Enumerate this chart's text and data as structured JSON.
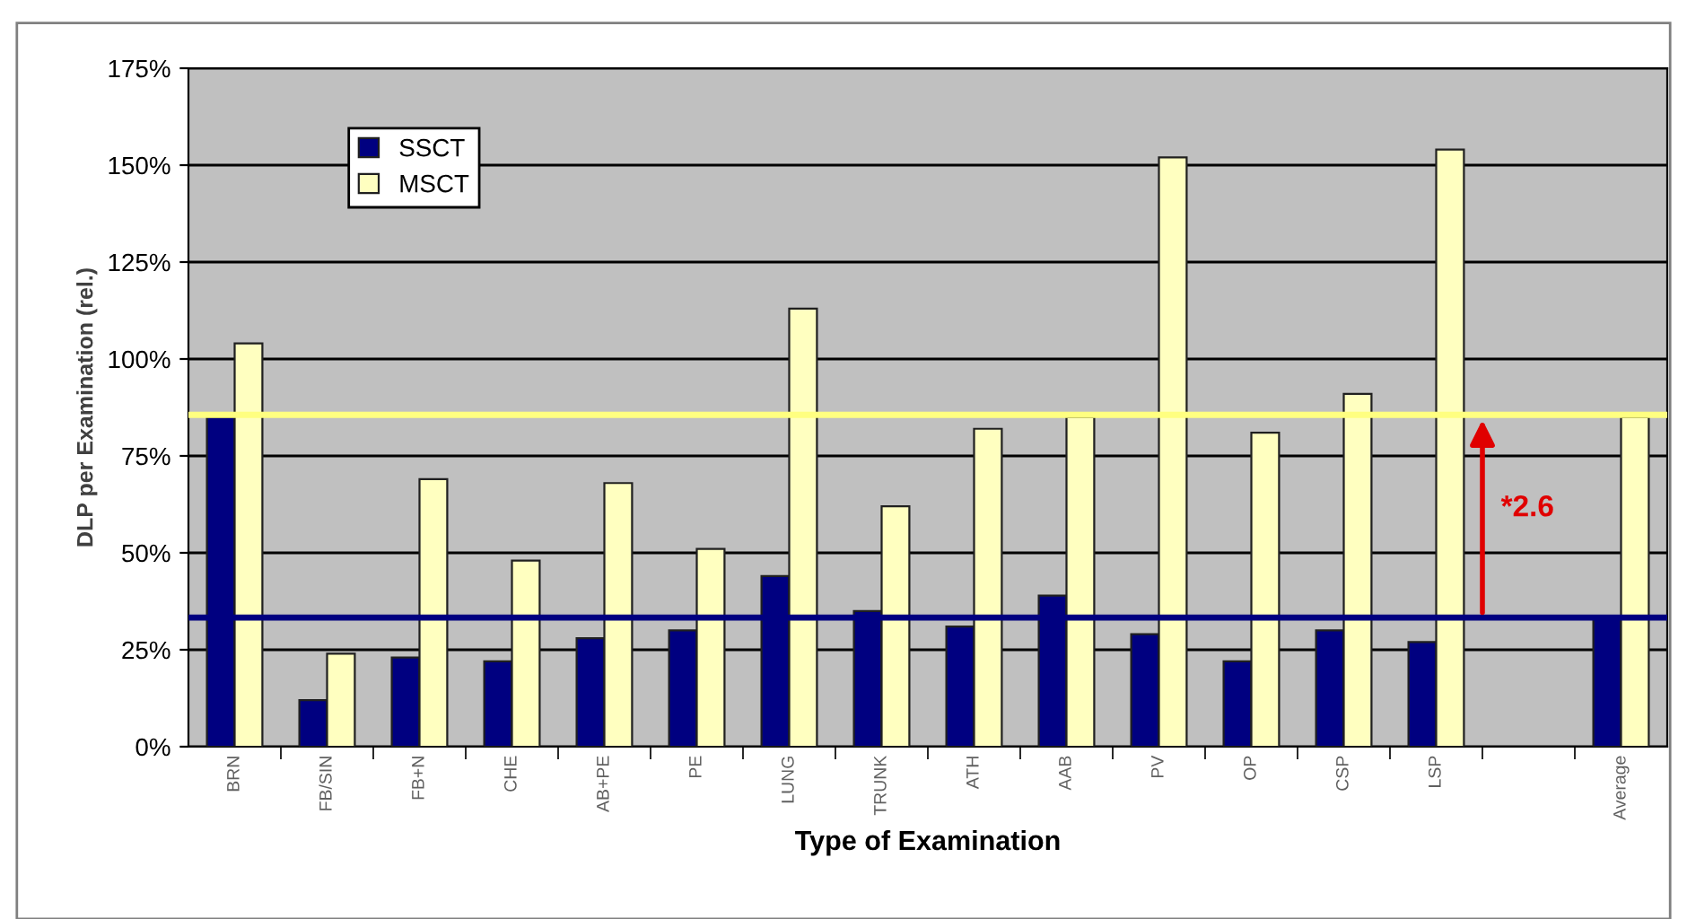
{
  "chart_data": {
    "type": "bar",
    "xlabel": "Type of Examination",
    "ylabel": "DLP per Examination (rel.)",
    "categories": [
      "BRN",
      "FB/SIN",
      "FB+N",
      "CHE",
      "AB+PE",
      "PE",
      "LUNG",
      "TRUNK",
      "ATH",
      "AAB",
      "PV",
      "OP",
      "CSP",
      "LSP",
      null,
      "Average"
    ],
    "series": [
      {
        "name": "SSCT",
        "color": "#000080",
        "values": [
          85,
          12,
          23,
          22,
          28,
          30,
          44,
          35,
          31,
          39,
          29,
          22,
          30,
          27,
          null,
          33
        ]
      },
      {
        "name": "MSCT",
        "color": "#ffffc0",
        "values": [
          104,
          24,
          69,
          48,
          68,
          51,
          113,
          62,
          82,
          85,
          152,
          81,
          91,
          154,
          null,
          85
        ]
      }
    ],
    "ylim": [
      0,
      175
    ],
    "yticks": [
      {
        "value": 0,
        "label": "0%"
      },
      {
        "value": 25,
        "label": "25%"
      },
      {
        "value": 50,
        "label": "50%"
      },
      {
        "value": 75,
        "label": "75%"
      },
      {
        "value": 100,
        "label": "100%"
      },
      {
        "value": 125,
        "label": "125%"
      },
      {
        "value": 150,
        "label": "150%"
      },
      {
        "value": 175,
        "label": "175%"
      }
    ],
    "ref_lines": [
      {
        "axis": "y",
        "value": 85.6,
        "color": "#ffff80"
      },
      {
        "axis": "y",
        "value": 33.3,
        "color": "#000080"
      }
    ],
    "annotations": [
      "*2.6"
    ],
    "grid": "y",
    "legend": "top left"
  }
}
